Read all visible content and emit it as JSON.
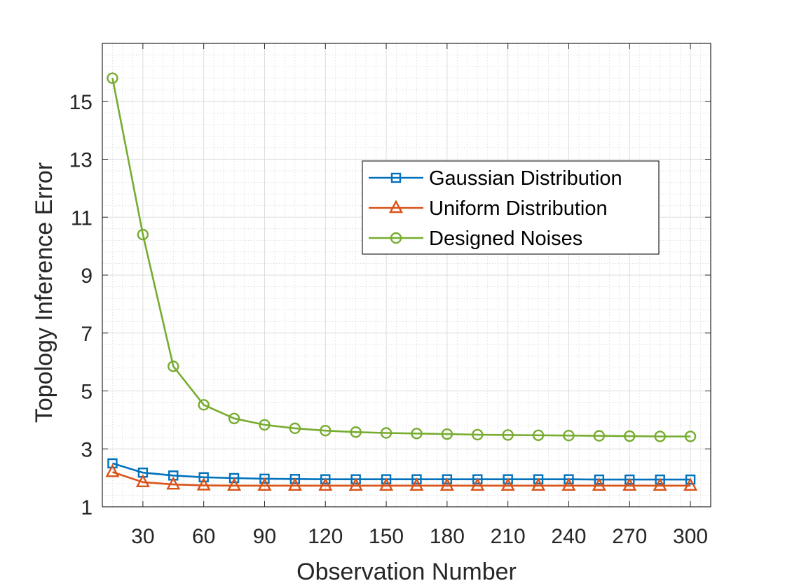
{
  "chart_data": {
    "type": "line",
    "xlabel": "Observation Number",
    "ylabel": "Topology Inference Error",
    "xlim": [
      10,
      310
    ],
    "ylim": [
      1,
      17
    ],
    "xticks": [
      30,
      60,
      90,
      120,
      150,
      180,
      210,
      240,
      270,
      300
    ],
    "xtick_labels": [
      "30",
      "60",
      "90",
      "120",
      "150",
      "180",
      "210",
      "240",
      "270",
      "300"
    ],
    "yticks": [
      1,
      3,
      5,
      7,
      9,
      11,
      13,
      15
    ],
    "ytick_labels": [
      "1",
      "3",
      "5",
      "7",
      "9",
      "11",
      "13",
      "15"
    ],
    "grid": "major and minor",
    "legend_position": "right-center",
    "x": [
      15,
      30,
      45,
      60,
      75,
      90,
      105,
      120,
      135,
      150,
      165,
      180,
      195,
      210,
      225,
      240,
      255,
      270,
      285,
      300
    ],
    "series": [
      {
        "name": "Gaussian Distribution",
        "color": "#0072BD",
        "marker": "square",
        "values": [
          2.5,
          2.18,
          2.08,
          2.02,
          1.99,
          1.97,
          1.96,
          1.95,
          1.95,
          1.95,
          1.95,
          1.95,
          1.95,
          1.95,
          1.95,
          1.95,
          1.94,
          1.94,
          1.94,
          1.94
        ]
      },
      {
        "name": "Uniform Distribution",
        "color": "#D95319",
        "marker": "triangle",
        "values": [
          2.2,
          1.85,
          1.77,
          1.74,
          1.73,
          1.73,
          1.73,
          1.73,
          1.73,
          1.73,
          1.73,
          1.73,
          1.73,
          1.73,
          1.73,
          1.73,
          1.73,
          1.73,
          1.73,
          1.73
        ]
      },
      {
        "name": "Designed Noises",
        "color": "#77AC30",
        "marker": "circle",
        "values": [
          15.8,
          10.4,
          5.85,
          4.52,
          4.05,
          3.83,
          3.71,
          3.63,
          3.58,
          3.55,
          3.53,
          3.51,
          3.49,
          3.48,
          3.47,
          3.46,
          3.45,
          3.44,
          3.43,
          3.43
        ]
      }
    ]
  }
}
